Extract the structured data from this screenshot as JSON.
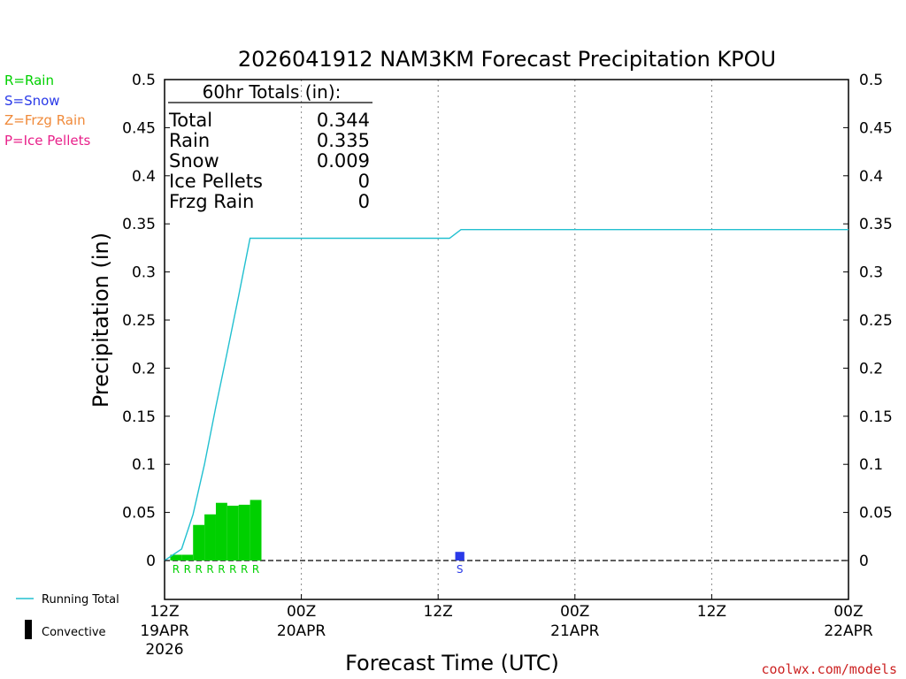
{
  "colors": {
    "rain": "#00d000",
    "snow": "#2a3ae8",
    "frzg_rain": "#f08a3a",
    "ice_pellets": "#e8208a",
    "running_total": "#22c0d0",
    "convective": "#000000"
  },
  "legend_left": [
    {
      "label": "R=Rain",
      "color_key": "rain"
    },
    {
      "label": "S=Snow",
      "color_key": "snow"
    },
    {
      "label": "Z=Frzg Rain",
      "color_key": "frzg_rain"
    },
    {
      "label": "P=Ice Pellets",
      "color_key": "ice_pellets"
    }
  ],
  "legend_bottom": {
    "running_total": "Running Total",
    "convective": "Convective"
  },
  "totals_box": {
    "header": "60hr Totals (in):",
    "rows": [
      {
        "label": "Total",
        "value": "0.344"
      },
      {
        "label": "Rain",
        "value": "0.335"
      },
      {
        "label": "Snow",
        "value": "0.009"
      },
      {
        "label": "Ice Pellets",
        "value": "0"
      },
      {
        "label": "Frzg Rain",
        "value": "0"
      }
    ]
  },
  "credit": "coolwx.com/models",
  "chart_data": {
    "type": "bar",
    "title": "2026041912 NAM3KM Forecast Precipitation KPOU",
    "xlabel": "Forecast Time (UTC)",
    "ylabel": "Precipitation (in)",
    "ylim": [
      0,
      0.5
    ],
    "xlim_hours": [
      0,
      60
    ],
    "y_ticks": [
      "0",
      "0.05",
      "0.1",
      "0.15",
      "0.2",
      "0.25",
      "0.3",
      "0.35",
      "0.4",
      "0.45",
      "0.5"
    ],
    "x_ticks": [
      {
        "hour": 0,
        "time": "12Z",
        "date": "19APR",
        "year": "2026"
      },
      {
        "hour": 12,
        "time": "00Z",
        "date": "20APR",
        "year": ""
      },
      {
        "hour": 24,
        "time": "12Z",
        "date": "",
        "year": ""
      },
      {
        "hour": 36,
        "time": "00Z",
        "date": "21APR",
        "year": ""
      },
      {
        "hour": 48,
        "time": "12Z",
        "date": "",
        "year": ""
      },
      {
        "hour": 60,
        "time": "00Z",
        "date": "22APR",
        "year": ""
      }
    ],
    "grid": "vertical dotted",
    "bars": [
      {
        "hour_start": 0.5,
        "hour_end": 1.5,
        "value": 0.006,
        "type": "rain",
        "label": "R"
      },
      {
        "hour_start": 1.5,
        "hour_end": 2.5,
        "value": 0.006,
        "type": "rain",
        "label": "R"
      },
      {
        "hour_start": 2.5,
        "hour_end": 3.5,
        "value": 0.037,
        "type": "rain",
        "label": "R"
      },
      {
        "hour_start": 3.5,
        "hour_end": 4.5,
        "value": 0.048,
        "type": "rain",
        "label": "R"
      },
      {
        "hour_start": 4.5,
        "hour_end": 5.5,
        "value": 0.06,
        "type": "rain",
        "label": "R"
      },
      {
        "hour_start": 5.5,
        "hour_end": 6.5,
        "value": 0.057,
        "type": "rain",
        "label": "R"
      },
      {
        "hour_start": 6.5,
        "hour_end": 7.5,
        "value": 0.058,
        "type": "rain",
        "label": "R"
      },
      {
        "hour_start": 7.5,
        "hour_end": 8.5,
        "value": 0.063,
        "type": "rain",
        "label": "R"
      },
      {
        "hour_start": 25.5,
        "hour_end": 26.3,
        "value": 0.009,
        "type": "snow",
        "label": "S"
      }
    ],
    "running_total": {
      "name": "Running Total",
      "hours": [
        0,
        1.5,
        2.5,
        3.5,
        4.5,
        5.5,
        6.5,
        7.5,
        8,
        12,
        24,
        25,
        26,
        36,
        48,
        60
      ],
      "values": [
        0,
        0.012,
        0.048,
        0.1,
        0.16,
        0.217,
        0.275,
        0.335,
        0.335,
        0.335,
        0.335,
        0.335,
        0.344,
        0.344,
        0.344,
        0.344
      ]
    }
  }
}
